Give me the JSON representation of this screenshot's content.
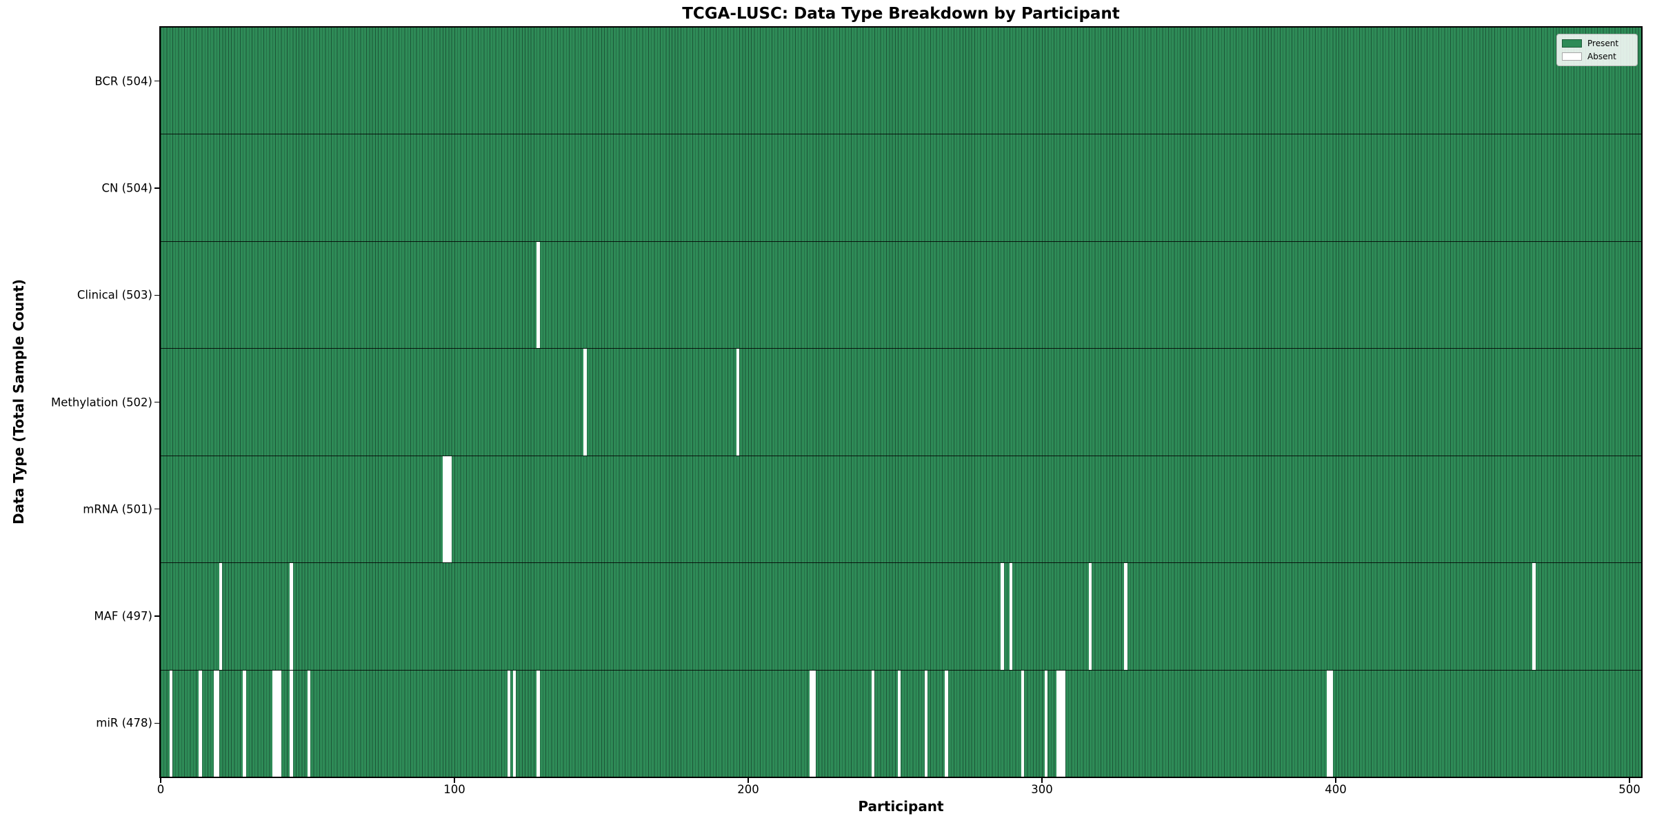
{
  "page": {
    "background": "#ffffff"
  },
  "chart_data": {
    "type": "heatmap",
    "title": "TCGA-LUSC: Data Type Breakdown by Participant",
    "xlabel": "Participant",
    "ylabel": "Data Type (Total Sample Count)",
    "x_ticks": [
      0,
      100,
      200,
      300,
      400,
      500
    ],
    "x_range": [
      0,
      504
    ],
    "n_participants": 504,
    "grid": false,
    "legend_position": "upper right",
    "colors": {
      "present": "#2e8b57",
      "absent": "#ffffff",
      "bar_edge": "#1c5537",
      "row_divider": "#000000"
    },
    "legend": {
      "entries": [
        {
          "label": "Present",
          "color": "#2e8b57"
        },
        {
          "label": "Absent",
          "color": "#ffffff"
        }
      ]
    },
    "rows": [
      {
        "label": "BCR (504)",
        "data_type": "BCR",
        "total": 504,
        "absent_participants": []
      },
      {
        "label": "CN (504)",
        "data_type": "CN",
        "total": 504,
        "absent_participants": []
      },
      {
        "label": "Clinical (503)",
        "data_type": "Clinical",
        "total": 503,
        "absent_participants": [
          128
        ]
      },
      {
        "label": "Methylation (502)",
        "data_type": "Methylation",
        "total": 502,
        "absent_participants": [
          144,
          196
        ]
      },
      {
        "label": "mRNA (501)",
        "data_type": "mRNA",
        "total": 501,
        "absent_participants": [
          96,
          97,
          98
        ]
      },
      {
        "label": "MAF (497)",
        "data_type": "MAF",
        "total": 497,
        "absent_participants": [
          20,
          44,
          286,
          289,
          316,
          328,
          467
        ]
      },
      {
        "label": "miR (478)",
        "data_type": "miR",
        "total": 478,
        "absent_participants": [
          3,
          13,
          18,
          19,
          28,
          38,
          39,
          40,
          44,
          50,
          118,
          120,
          128,
          221,
          222,
          242,
          251,
          260,
          267,
          293,
          301,
          305,
          306,
          307,
          397,
          398
        ]
      }
    ]
  }
}
